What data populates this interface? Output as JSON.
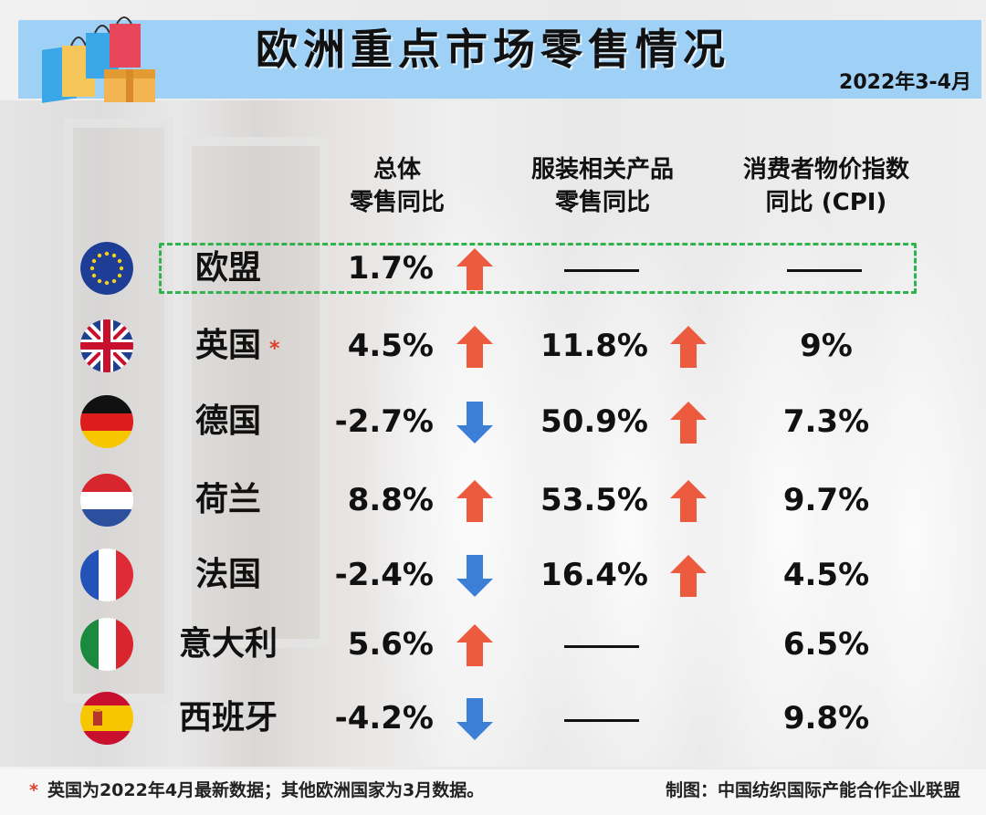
{
  "header": {
    "title": "欧洲重点市场零售情况",
    "date": "2022年3-4月"
  },
  "columns": {
    "retail_line1": "总体",
    "retail_line2": "零售同比",
    "apparel_line1": "服装相关产品",
    "apparel_line2": "零售同比",
    "cpi_line1": "消费者物价指数",
    "cpi_line2": "同比 (CPI)"
  },
  "rows": [
    {
      "country": "欧盟",
      "retail": "1.7%",
      "retail_dir": "up",
      "apparel": "",
      "apparel_dir": "none",
      "cpi": ""
    },
    {
      "country": "英国",
      "note_mark": "*",
      "retail": "4.5%",
      "retail_dir": "up",
      "apparel": "11.8%",
      "apparel_dir": "up",
      "cpi": "9%"
    },
    {
      "country": "德国",
      "retail": "-2.7%",
      "retail_dir": "down",
      "apparel": "50.9%",
      "apparel_dir": "up",
      "cpi": "7.3%"
    },
    {
      "country": "荷兰",
      "retail": "8.8%",
      "retail_dir": "up",
      "apparel": "53.5%",
      "apparel_dir": "up",
      "cpi": "9.7%"
    },
    {
      "country": "法国",
      "retail": "-2.4%",
      "retail_dir": "down",
      "apparel": "16.4%",
      "apparel_dir": "up",
      "cpi": "4.5%"
    },
    {
      "country": "意大利",
      "retail": "5.6%",
      "retail_dir": "up",
      "apparel": "",
      "apparel_dir": "none",
      "cpi": "6.5%"
    },
    {
      "country": "西班牙",
      "retail": "-4.2%",
      "retail_dir": "down",
      "apparel": "",
      "apparel_dir": "none",
      "cpi": "9.8%"
    }
  ],
  "footer": {
    "star": "*",
    "note": "英国为2022年4月最新数据；其他欧洲国家为3月数据。",
    "credit": "制图：中国纺织国际产能合作企业联盟"
  },
  "colors": {
    "header_bg": "#9fd0f5",
    "up_arrow": "#ec5b3e",
    "down_arrow": "#3d7fd6",
    "highlight_border": "#2fb34a"
  }
}
